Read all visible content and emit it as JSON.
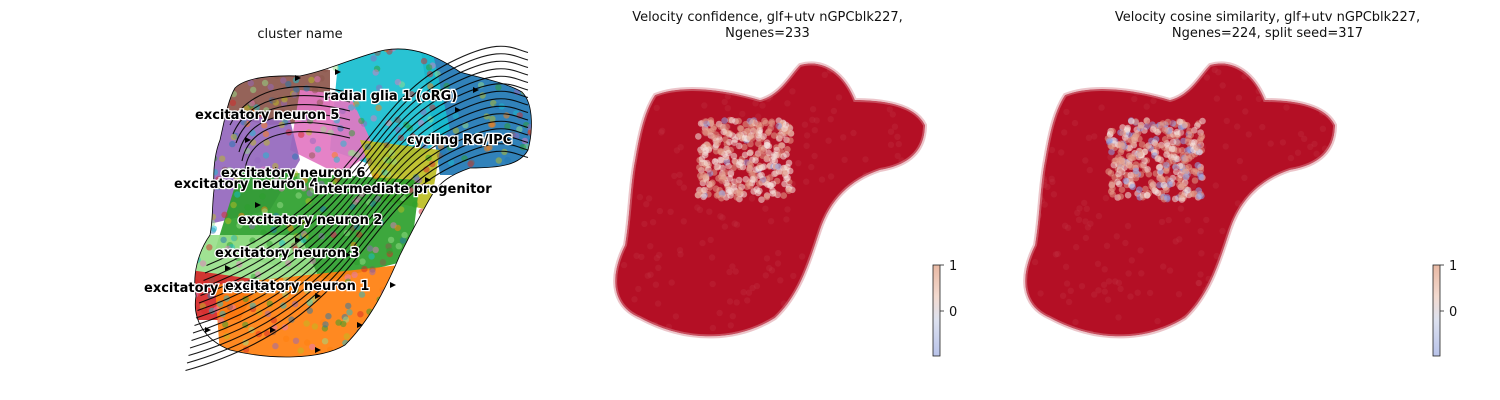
{
  "panels": {
    "umap": {
      "title": "cluster name"
    },
    "confidence": {
      "title_line1": "Velocity confidence, glf+utv nGPCblk227,",
      "title_line2": "Ngenes=233"
    },
    "cosine": {
      "title_line1": "Velocity cosine similarity, glf+utv nGPCblk227,",
      "title_line2": "Ngenes=224, split seed=317"
    }
  },
  "colorbar_ticks": [
    "1",
    "0"
  ],
  "colors": {
    "high": "#b40f25",
    "mid": "#f7e4da",
    "low": "#3b4cc0"
  },
  "chart_data": [
    {
      "type": "scatter",
      "title": "cluster name",
      "subtype": "embedding with velocity streamlines",
      "clusters": [
        {
          "name": "radial glia 1 (oRG)",
          "color": "#17becf"
        },
        {
          "name": "cycling RG/IPC",
          "color": "#1f77b4"
        },
        {
          "name": "excitatory neuron 5",
          "color": "#8c564b"
        },
        {
          "name": "excitatory neuron 6",
          "color": "#e377c2"
        },
        {
          "name": "excitatory neuron 4",
          "color": "#9467bd"
        },
        {
          "name": "intermediate progenitor",
          "color": "#bcbd22"
        },
        {
          "name": "excitatory neuron 2",
          "color": "#2ca02c"
        },
        {
          "name": "excitatory neuron 3",
          "color": "#98df8a"
        },
        {
          "name": "excitatory neuron 7",
          "color": "#d62728"
        },
        {
          "name": "excitatory neuron 1",
          "color": "#ff7f0e"
        }
      ],
      "labels": [
        {
          "text": "radial glia 1 (oRG)"
        },
        {
          "text": "excitatory neuron 5"
        },
        {
          "text": "cycling RG/IPC"
        },
        {
          "text": "excitatory neuron 6"
        },
        {
          "text": "excitatory neuron 4"
        },
        {
          "text": "intermediate progenitor"
        },
        {
          "text": "excitatory neuron 2"
        },
        {
          "text": "excitatory neuron 3"
        },
        {
          "text": "excitatory neuron 7"
        },
        {
          "text": "excitatory neuron 1"
        }
      ],
      "grid": false,
      "axes": false
    },
    {
      "type": "scatter",
      "title": "Velocity confidence, glf+utv nGPCblk227, Ngenes=233",
      "colorbar": {
        "ticks": [
          1,
          0
        ],
        "colormap": "coolwarm"
      },
      "dominant_value": 1,
      "low_region": "upper-middle core"
    },
    {
      "type": "scatter",
      "title": "Velocity cosine similarity, glf+utv nGPCblk227, Ngenes=224, split seed=317",
      "colorbar": {
        "ticks": [
          1,
          0
        ],
        "colormap": "coolwarm"
      },
      "dominant_value": 1,
      "low_region": "upper-middle core"
    }
  ]
}
